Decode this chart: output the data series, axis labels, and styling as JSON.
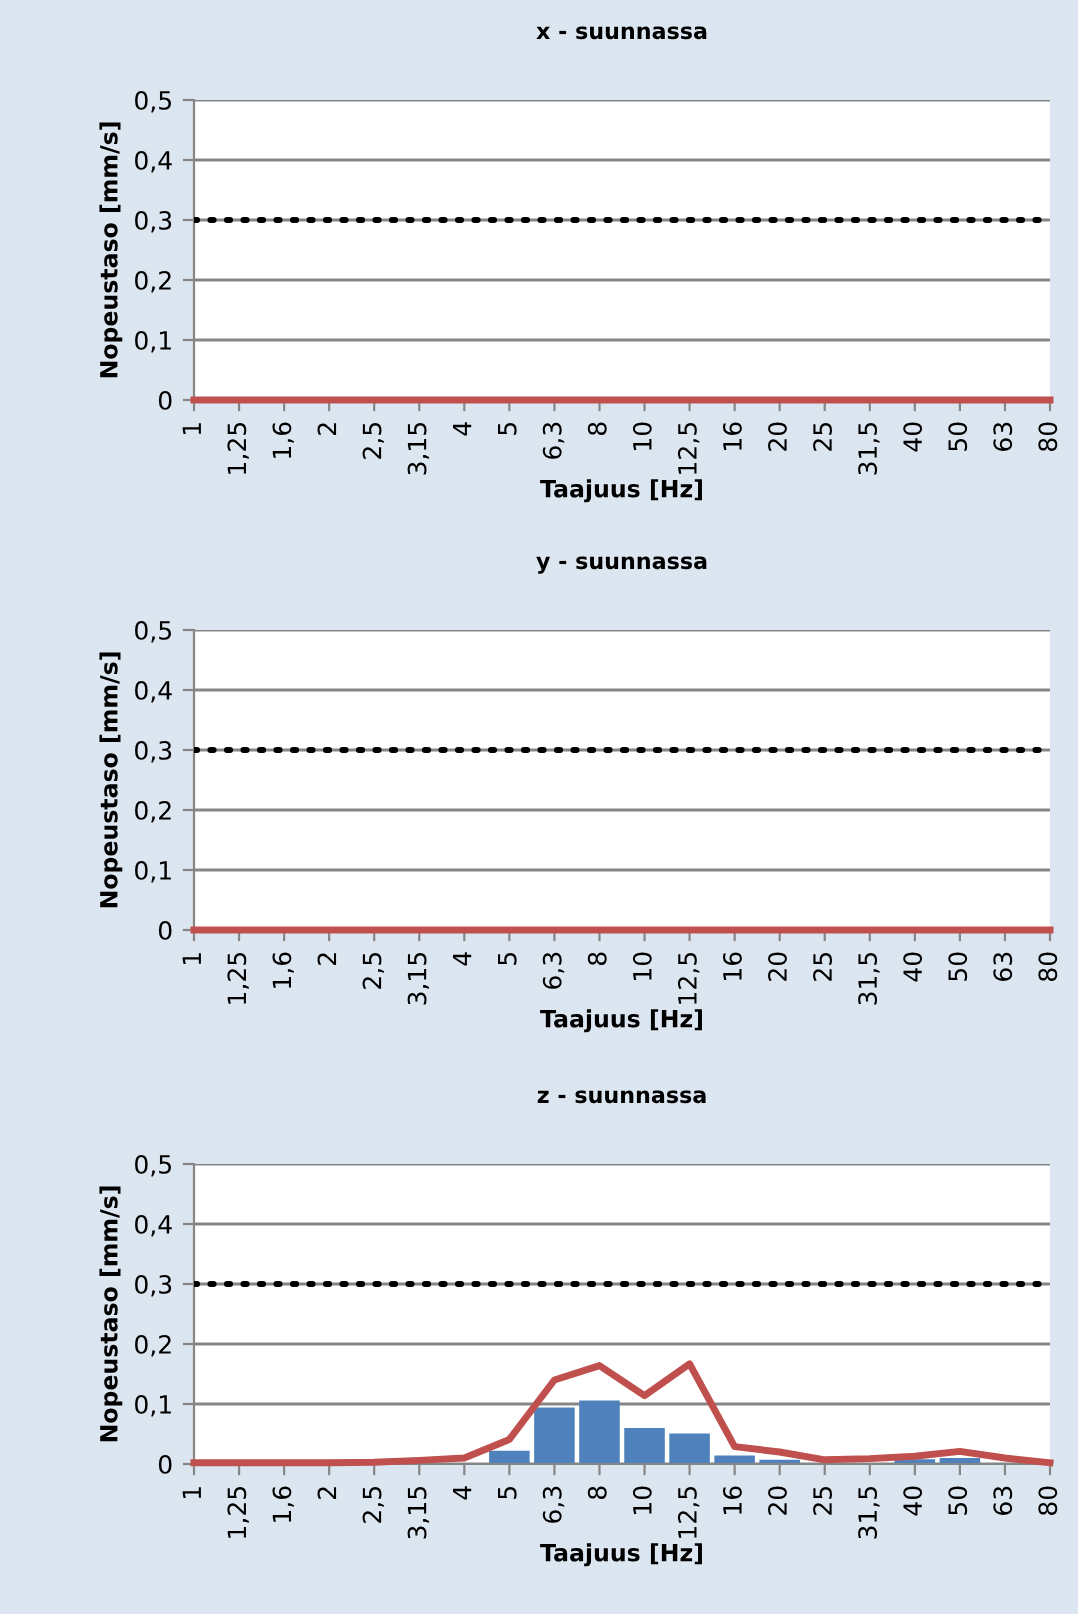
{
  "chart_data": [
    {
      "type": "line",
      "title": "x - suunnassa",
      "xlabel": "Taajuus [Hz]",
      "ylabel": "Nopeustaso [mm/s]",
      "categories": [
        "1",
        "1,25",
        "1,6",
        "2",
        "2,5",
        "3,15",
        "4",
        "5",
        "6,3",
        "8",
        "10",
        "12,5",
        "16",
        "20",
        "25",
        "31,5",
        "40",
        "50",
        "63",
        "80"
      ],
      "series": [
        {
          "type": "line",
          "color": "#c0504d",
          "values": [
            0,
            0,
            0,
            0,
            0,
            0,
            0,
            0,
            0,
            0,
            0,
            0,
            0,
            0,
            0,
            0,
            0,
            0,
            0,
            0
          ]
        }
      ],
      "ylim": [
        0,
        0.5
      ],
      "yticks": [
        {
          "value": 0,
          "label": "0"
        },
        {
          "value": 0.1,
          "label": "0,1"
        },
        {
          "value": 0.2,
          "label": "0,2"
        },
        {
          "value": 0.3,
          "label": "0,3"
        },
        {
          "value": 0.4,
          "label": "0,4"
        },
        {
          "value": 0.5,
          "label": "0,5"
        }
      ],
      "ref_lines": [
        {
          "axis": "y",
          "value": 0.3,
          "color": "#000000",
          "line_style": "dotted"
        }
      ],
      "grid": "y",
      "marker": "none",
      "line_style": "solid"
    },
    {
      "type": "line",
      "title": "y - suunnassa",
      "xlabel": "Taajuus [Hz]",
      "ylabel": "Nopeustaso [mm/s]",
      "categories": [
        "1",
        "1,25",
        "1,6",
        "2",
        "2,5",
        "3,15",
        "4",
        "5",
        "6,3",
        "8",
        "10",
        "12,5",
        "16",
        "20",
        "25",
        "31,5",
        "40",
        "50",
        "63",
        "80"
      ],
      "series": [
        {
          "type": "line",
          "color": "#c0504d",
          "values": [
            0,
            0,
            0,
            0,
            0,
            0,
            0,
            0,
            0,
            0,
            0,
            0,
            0,
            0,
            0,
            0,
            0,
            0,
            0,
            0
          ]
        }
      ],
      "ylim": [
        0,
        0.5
      ],
      "yticks": [
        {
          "value": 0,
          "label": "0"
        },
        {
          "value": 0.1,
          "label": "0,1"
        },
        {
          "value": 0.2,
          "label": "0,2"
        },
        {
          "value": 0.3,
          "label": "0,3"
        },
        {
          "value": 0.4,
          "label": "0,4"
        },
        {
          "value": 0.5,
          "label": "0,5"
        }
      ],
      "ref_lines": [
        {
          "axis": "y",
          "value": 0.3,
          "color": "#000000",
          "line_style": "dotted"
        }
      ],
      "grid": "y",
      "marker": "none",
      "line_style": "solid"
    },
    {
      "type": "bar",
      "title": "z - suunnassa",
      "xlabel": "Taajuus [Hz]",
      "ylabel": "Nopeustaso [mm/s]",
      "categories": [
        "1",
        "1,25",
        "1,6",
        "2",
        "2,5",
        "3,15",
        "4",
        "5",
        "6,3",
        "8",
        "10",
        "12,5",
        "16",
        "20",
        "25",
        "31,5",
        "40",
        "50",
        "63",
        "80"
      ],
      "series": [
        {
          "color": "#4f81bd",
          "values": [
            0,
            0,
            0,
            0,
            0,
            0,
            null,
            0.022,
            0.094,
            0.106,
            0.06,
            0.051,
            0.014,
            0.007,
            null,
            null,
            0.008,
            0.01,
            null,
            0
          ]
        },
        {
          "type": "line",
          "color": "#c0504d",
          "values": [
            0.002,
            0.002,
            0.002,
            0.002,
            0.003,
            0.006,
            0.01,
            0.041,
            0.14,
            0.164,
            0.114,
            0.167,
            0.029,
            0.02,
            0.007,
            0.009,
            0.013,
            0.021,
            0.01,
            0.002
          ]
        }
      ],
      "ylim": [
        0,
        0.5
      ],
      "yticks": [
        {
          "value": 0,
          "label": "0"
        },
        {
          "value": 0.1,
          "label": "0,1"
        },
        {
          "value": 0.2,
          "label": "0,2"
        },
        {
          "value": 0.3,
          "label": "0,3"
        },
        {
          "value": 0.4,
          "label": "0,4"
        },
        {
          "value": 0.5,
          "label": "0,5"
        }
      ],
      "ref_lines": [
        {
          "axis": "y",
          "value": 0.3,
          "color": "#000000",
          "line_style": "dotted"
        }
      ],
      "grid": "y",
      "marker": "none",
      "line_style": "solid"
    }
  ]
}
